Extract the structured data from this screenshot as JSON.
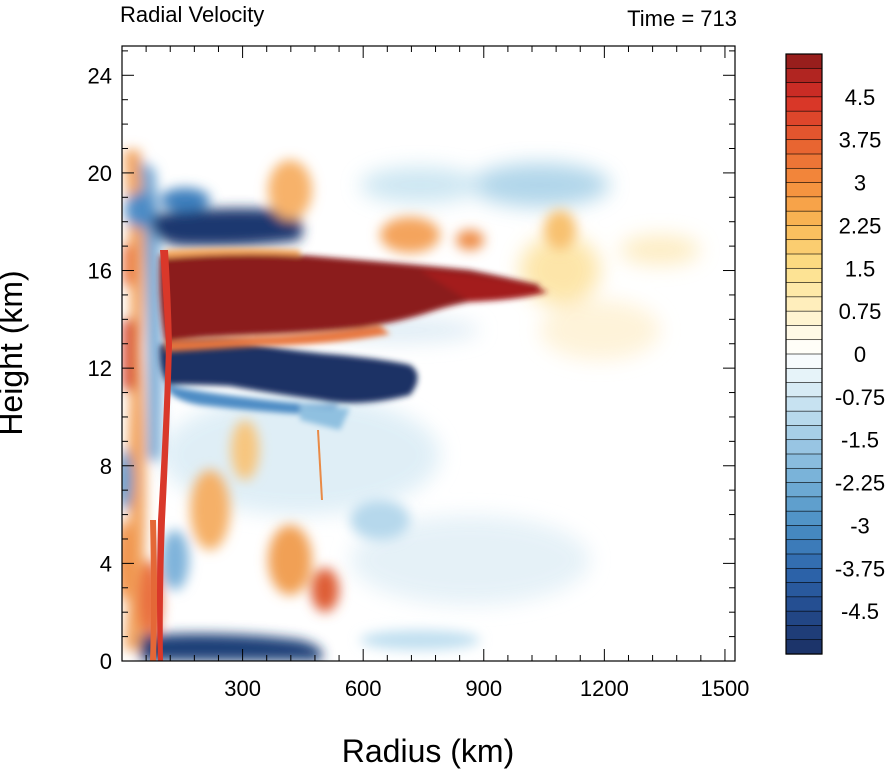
{
  "chart_data": {
    "type": "heatmap",
    "title": "Radial Velocity",
    "right_title": "Time = 713",
    "xlabel": "Radius (km)",
    "ylabel": "Height (km)",
    "xlim": [
      0,
      1525
    ],
    "ylim": [
      0,
      25.2
    ],
    "x_ticks": [
      300,
      600,
      900,
      1200,
      1500
    ],
    "x_tick_labels": [
      "300",
      "600",
      "900",
      "1200",
      "1500"
    ],
    "y_ticks": [
      0,
      4,
      8,
      12,
      16,
      20,
      24
    ],
    "y_tick_labels": [
      "0",
      "4",
      "8",
      "12",
      "16",
      "20",
      "24"
    ],
    "colorbar": {
      "min": -5.25,
      "max": 5.25,
      "step": 0.25,
      "labels": [
        "4.5",
        "3.75",
        "3",
        "2.25",
        "1.5",
        "0.75",
        "0",
        "-0.75",
        "-1.5",
        "-2.25",
        "-3",
        "-3.75",
        "-4.5"
      ],
      "label_values": [
        4.5,
        3.75,
        3,
        2.25,
        1.5,
        0.75,
        0,
        -0.75,
        -1.5,
        -2.25,
        -3,
        -3.75,
        -4.5
      ],
      "colors": {
        "dark_red": "#8b1a1a",
        "red": "#d62f27",
        "orange": "#f48d3c",
        "yellow": "#fde08a",
        "white": "#ffffff",
        "light_blue": "#c2e4f1",
        "blue": "#4a8fc4",
        "dark_blue": "#1b2f63"
      }
    },
    "features": [
      {
        "name": "upper-outflow",
        "sign": "positive",
        "r": [
          110,
          1050
        ],
        "z": [
          13.2,
          16.8
        ],
        "peak": 5.2
      },
      {
        "name": "inflow-below-outflow",
        "sign": "negative",
        "r": [
          150,
          620
        ],
        "z": [
          10.5,
          13.0
        ],
        "peak": -5.2
      },
      {
        "name": "upper-inflow-band",
        "sign": "negative",
        "r": [
          100,
          480
        ],
        "z": [
          16.9,
          18.2
        ],
        "peak": -5.0
      },
      {
        "name": "eyewall-outflow-column",
        "sign": "positive",
        "r": [
          95,
          125
        ],
        "z": [
          0,
          13
        ],
        "peak": 4.0
      },
      {
        "name": "low-level-inflow",
        "sign": "negative",
        "r": [
          110,
          490
        ],
        "z": [
          0,
          0.8
        ],
        "peak": -4.5
      },
      {
        "name": "upper-anvil-inflow",
        "sign": "negative",
        "r": [
          950,
          1150
        ],
        "z": [
          18.8,
          21
        ],
        "peak": -2.0
      },
      {
        "name": "outer-outflow",
        "sign": "positive",
        "r": [
          850,
          1150
        ],
        "z": [
          15,
          18.5
        ],
        "peak": 1.5
      }
    ]
  }
}
